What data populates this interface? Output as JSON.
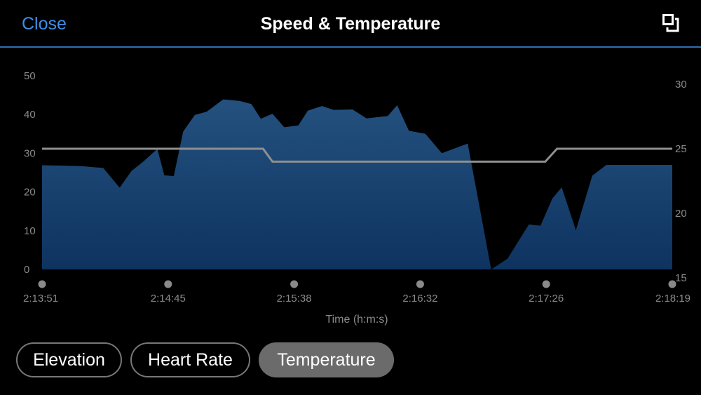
{
  "header": {
    "close_label": "Close",
    "title": "Speed & Temperature",
    "expand_icon": "expand-icon"
  },
  "colors": {
    "accent": "#3b8fe6",
    "speed_fill_top": "#24517f",
    "speed_fill_bottom": "#0e3360",
    "temperature_line": "#8f8f8f",
    "pill_active": "#6b6b6b"
  },
  "chart_data": {
    "type": "area",
    "xlabel": "Time (h:m:s)",
    "x_tick_labels": [
      "2:13:51",
      "2:14:45",
      "2:15:38",
      "2:16:32",
      "2:17:26",
      "2:18:19"
    ],
    "x_range": [
      "2:13:51",
      "2:18:19"
    ],
    "left_axis": {
      "ticks": [
        0,
        10,
        20,
        30,
        40,
        50
      ],
      "ylim": [
        0,
        50
      ]
    },
    "right_axis": {
      "ticks": [
        15,
        20,
        25,
        30
      ],
      "ylim": [
        15,
        30
      ]
    },
    "grid": false,
    "series": [
      {
        "axis": "left",
        "style": "area",
        "x": [
          "2:13:51",
          "2:14:07",
          "2:14:17",
          "2:14:24",
          "2:14:29",
          "2:14:34",
          "2:14:40",
          "2:14:43",
          "2:14:47",
          "2:14:51",
          "2:14:56",
          "2:15:01",
          "2:15:08",
          "2:15:15",
          "2:15:20",
          "2:15:24",
          "2:15:29",
          "2:15:34",
          "2:15:40",
          "2:15:44",
          "2:15:50",
          "2:15:55",
          "2:16:03",
          "2:16:09",
          "2:16:18",
          "2:16:22",
          "2:16:27",
          "2:16:34",
          "2:16:41",
          "2:16:52",
          "2:17:02",
          "2:17:09",
          "2:17:18",
          "2:17:23",
          "2:17:28",
          "2:17:32",
          "2:17:38",
          "2:17:45",
          "2:17:51",
          "2:17:58",
          "2:18:10",
          "2:18:15",
          "2:18:19"
        ],
        "values": [
          26.9,
          26.7,
          26.2,
          21.1,
          25.4,
          27.8,
          31.1,
          24.3,
          24.1,
          35.6,
          39.9,
          40.7,
          43.9,
          43.5,
          42.7,
          38.9,
          40.2,
          36.7,
          37.2,
          41.0,
          42.2,
          41.2,
          41.3,
          39.0,
          39.6,
          42.4,
          35.8,
          35.0,
          30.0,
          32.5,
          0,
          2.8,
          11.6,
          11.3,
          18.3,
          21.2,
          10.1,
          24.2,
          27.0,
          27.0,
          27.0,
          27.0,
          27.0
        ]
      },
      {
        "axis": "right",
        "style": "line",
        "x": [
          "2:13:51",
          "2:15:25",
          "2:15:29",
          "2:17:25",
          "2:17:30",
          "2:18:19"
        ],
        "values": [
          25,
          25,
          24,
          24,
          25,
          25
        ]
      }
    ]
  },
  "tabs": [
    {
      "label": "Elevation",
      "active": false
    },
    {
      "label": "Heart Rate",
      "active": false
    },
    {
      "label": "Temperature",
      "active": true
    }
  ]
}
